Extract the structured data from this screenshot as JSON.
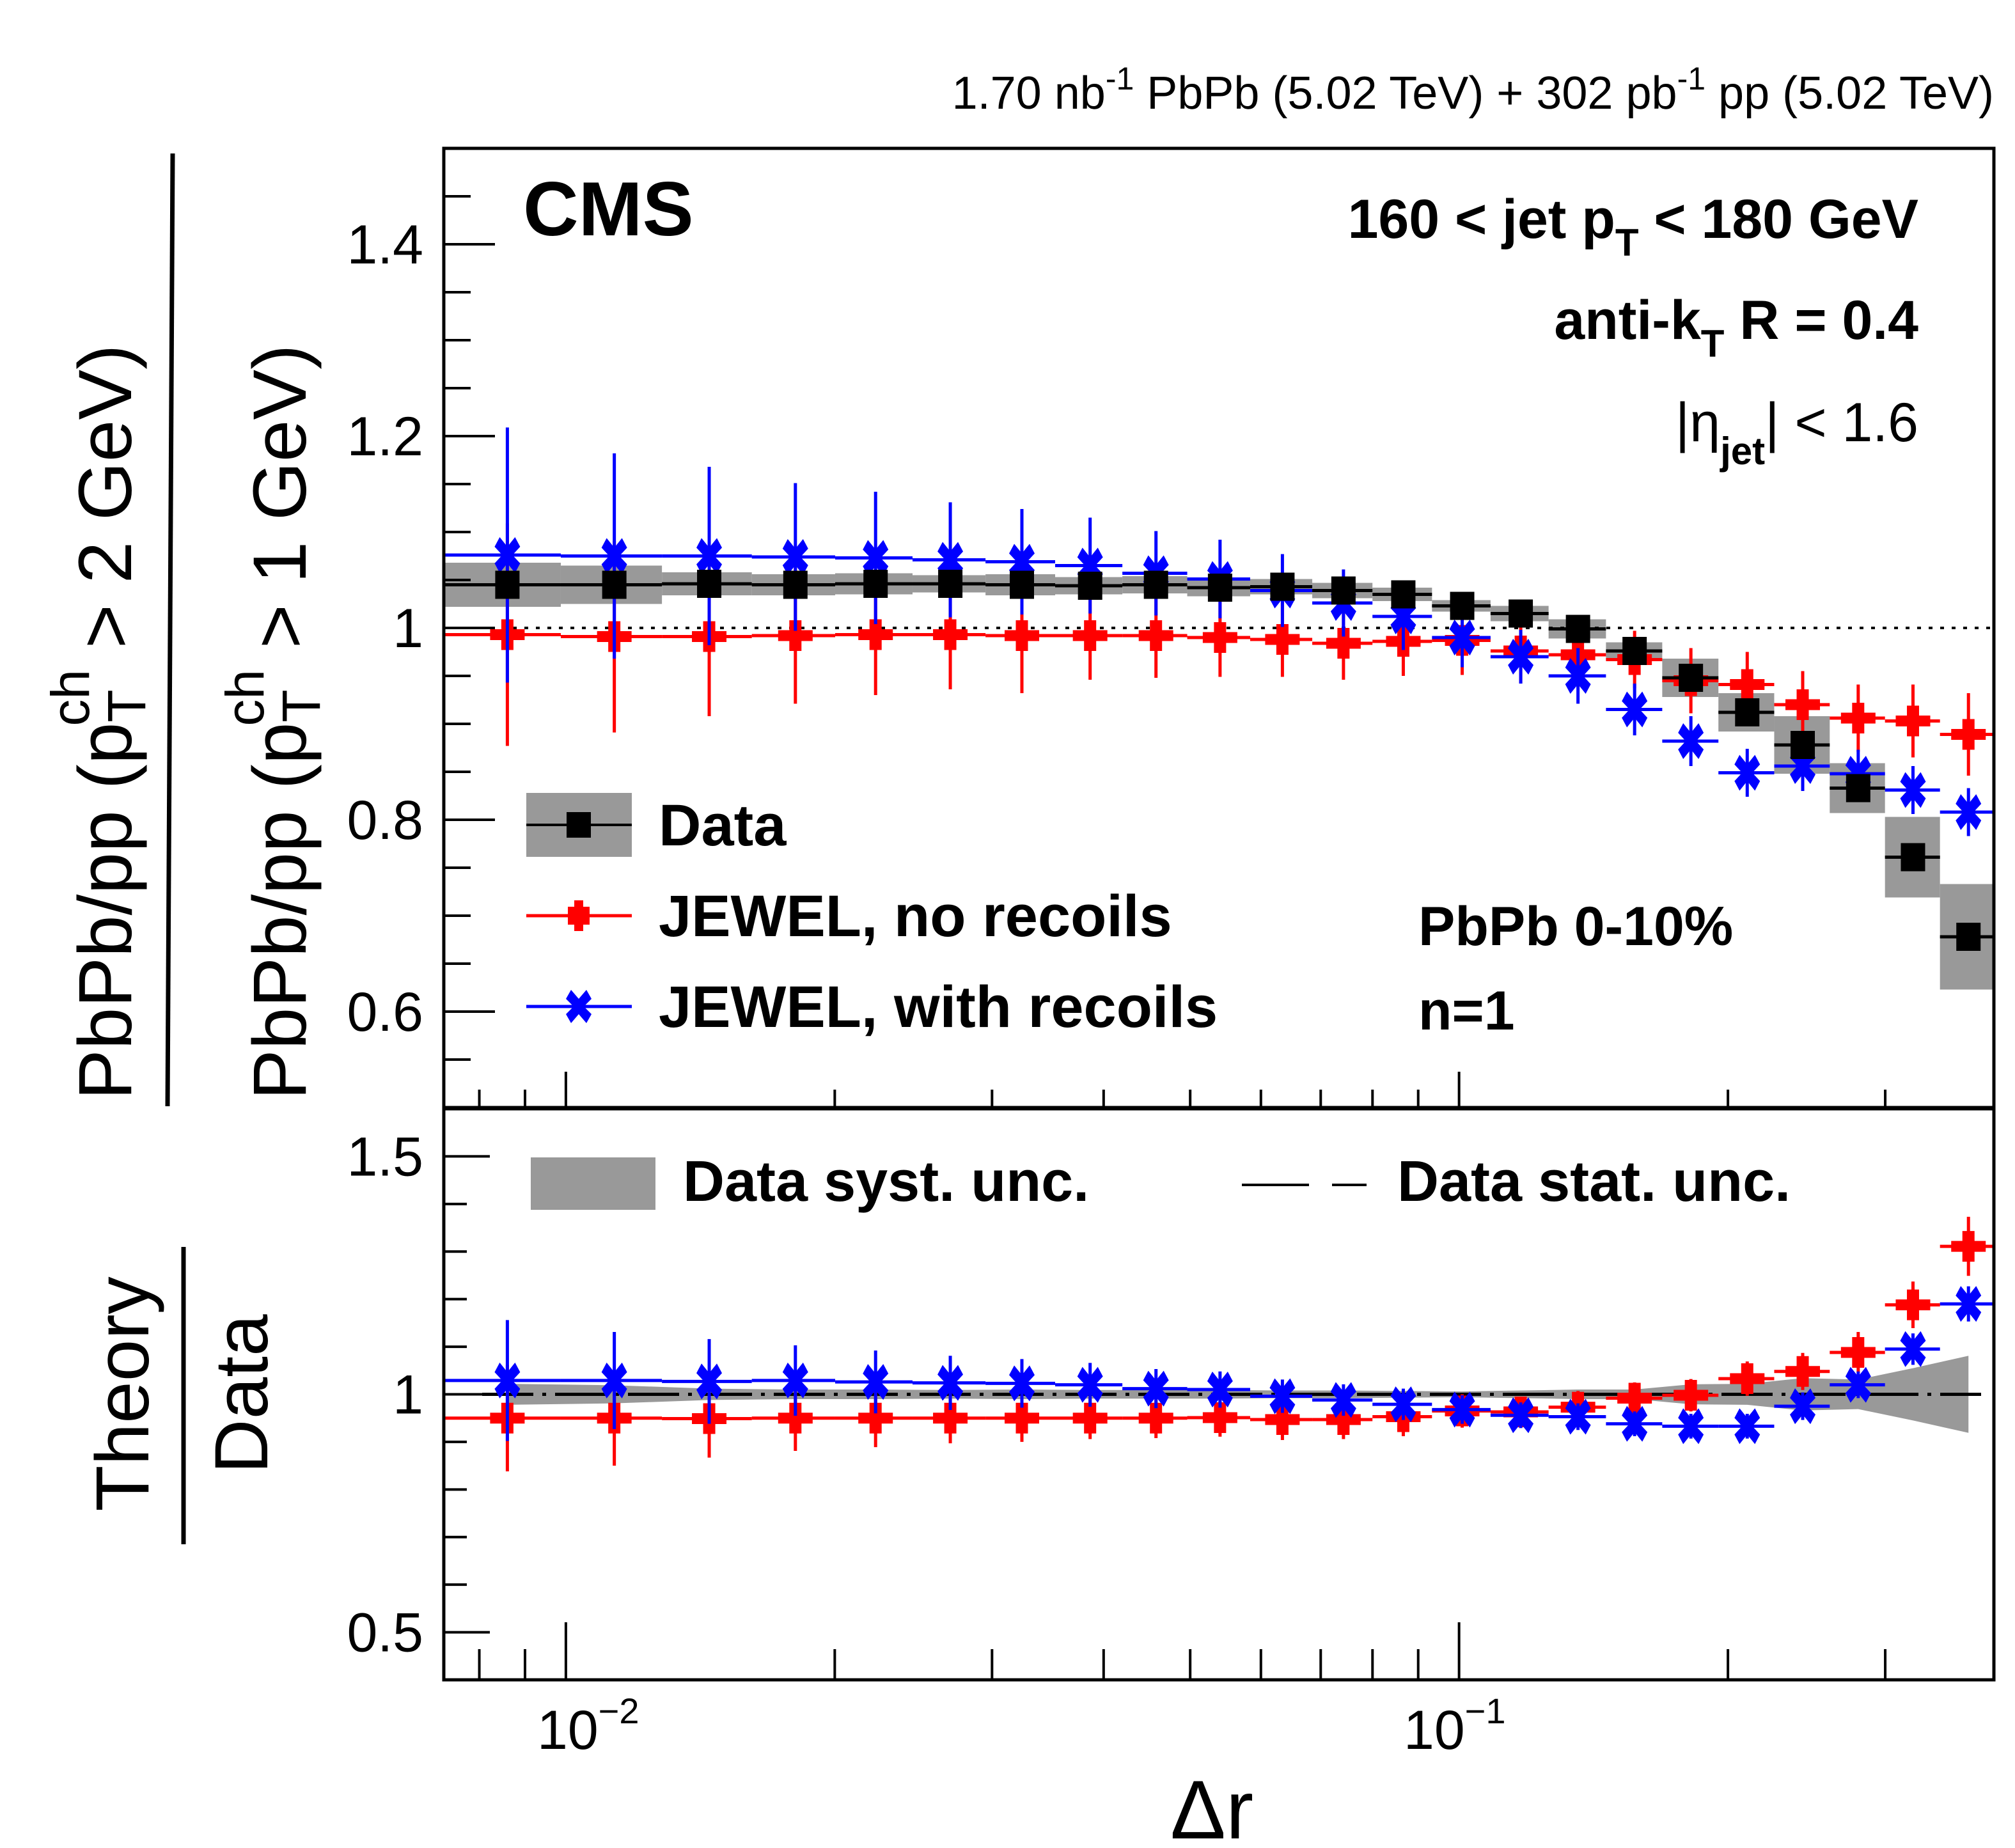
{
  "header": {
    "lumi_text": "1.70 nb⁻¹ PbPb (5.02 TeV) + 302 pb⁻¹ pp (5.02 TeV)",
    "lumi_parts": [
      "1.70 nb",
      "-1",
      " PbPb (5.02 TeV) + 302 pb",
      "-1",
      " pp (5.02 TeV)"
    ]
  },
  "labels": {
    "experiment": "CMS",
    "jet_pt_range": [
      "160 < jet p",
      "T",
      " < 180 GeV"
    ],
    "jet_algo": [
      "anti-k",
      "T",
      " R = 0.4"
    ],
    "eta_cut": [
      "|η",
      "jet",
      "| < 1.6"
    ],
    "centrality": "PbPb 0-10%",
    "moment": "n=1"
  },
  "axes": {
    "upper_ylabel_numerator": [
      "PbPb/pp (p",
      "T",
      "ch",
      " > 2 GeV)"
    ],
    "upper_ylabel_denominator": [
      "PbPb/pp (p",
      "T",
      "ch",
      " > 1 GeV)"
    ],
    "lower_ylabel_numerator": "Theory",
    "lower_ylabel_denominator": "Data",
    "xlabel": "Δr",
    "x_tick_labels": [
      {
        "base": "10",
        "exp": "−2",
        "value": 0.01
      },
      {
        "base": "10",
        "exp": "−1",
        "value": 0.1
      }
    ],
    "upper_y_tick_labels": [
      "1.4",
      "1.2",
      "1",
      "0.8",
      "0.6"
    ],
    "lower_y_tick_labels": [
      "1.5",
      "1",
      "0.5"
    ]
  },
  "legend": {
    "upper": [
      {
        "label": "Data",
        "style": "black-square-gray-band"
      },
      {
        "label": "JEWEL, no recoils",
        "style": "red-cross"
      },
      {
        "label": "JEWEL, with recoils",
        "style": "blue-x"
      }
    ],
    "lower": [
      {
        "label": "Data syst. unc.",
        "style": "gray-band"
      },
      {
        "label": "Data stat. unc.",
        "style": "dash-dot-line"
      }
    ]
  },
  "colors": {
    "data": "#000000",
    "syst_band": "#999999",
    "no_recoils": "#ff0000",
    "with_recoils": "#0000ff",
    "frame": "#000000"
  },
  "chart_data": [
    {
      "type": "scatter",
      "panel": "upper",
      "title": "",
      "xlabel": "Δr",
      "ylabel": "PbPb/pp (pT^ch > 2 GeV) / PbPb/pp (pT^ch > 1 GeV)",
      "xscale": "log",
      "xlim": [
        0.0073,
        0.397
      ],
      "ylim": [
        0.5,
        1.5
      ],
      "y_major_ticks": [
        0.6,
        0.8,
        1.0,
        1.2,
        1.4
      ],
      "y_minor_step": 0.05,
      "reference_line": {
        "y": 1.0,
        "style": "dotted"
      },
      "legend_position": "bottom-left",
      "x": [
        0.0086,
        0.01133,
        0.01447,
        0.01807,
        0.02222,
        0.02694,
        0.0324,
        0.03863,
        0.04578,
        0.054,
        0.06342,
        0.07423,
        0.08661,
        0.10081,
        0.11723,
        0.13588,
        0.15723,
        0.18178,
        0.2102,
        0.24251,
        0.27982,
        0.32226,
        0.3718
      ],
      "x_edges": [
        0.00733,
        0.00987,
        0.01281,
        0.01615,
        0.02002,
        0.02444,
        0.0295,
        0.0353,
        0.04198,
        0.04962,
        0.05836,
        0.06849,
        0.07999,
        0.09326,
        0.10846,
        0.12596,
        0.14604,
        0.16884,
        0.19515,
        0.22534,
        0.26001,
        0.29981,
        0.34548,
        0.39663
      ],
      "series": [
        {
          "name": "Data",
          "marker": "square",
          "values": [
            1.045,
            1.045,
            1.046,
            1.045,
            1.046,
            1.046,
            1.045,
            1.044,
            1.045,
            1.042,
            1.043,
            1.039,
            1.035,
            1.023,
            1.015,
            0.999,
            0.976,
            0.948,
            0.912,
            0.878,
            0.833,
            0.761,
            0.678
          ],
          "syst": [
            0.023,
            0.02,
            0.012,
            0.011,
            0.011,
            0.009,
            0.011,
            0.009,
            0.009,
            0.009,
            0.008,
            0.008,
            0.007,
            0.006,
            0.008,
            0.01,
            0.009,
            0.02,
            0.02,
            0.03,
            0.026,
            0.042,
            0.055
          ]
        },
        {
          "name": "JEWEL, no recoils",
          "marker": "cross",
          "values": [
            0.993,
            0.991,
            0.991,
            0.992,
            0.993,
            0.993,
            0.992,
            0.992,
            0.992,
            0.99,
            0.988,
            0.984,
            0.986,
            0.987,
            0.976,
            0.972,
            0.967,
            0.945,
            0.941,
            0.92,
            0.906,
            0.903,
            0.889
          ],
          "errors": [
            0.116,
            0.1,
            0.083,
            0.071,
            0.063,
            0.057,
            0.06,
            0.046,
            0.044,
            0.041,
            0.039,
            0.038,
            0.036,
            0.036,
            0.034,
            0.034,
            0.03,
            0.034,
            0.034,
            0.035,
            0.035,
            0.038,
            0.043
          ]
        },
        {
          "name": "JEWEL, with recoils",
          "marker": "x",
          "values": [
            1.076,
            1.075,
            1.075,
            1.074,
            1.073,
            1.071,
            1.069,
            1.065,
            1.057,
            1.051,
            1.039,
            1.026,
            1.012,
            0.99,
            0.97,
            0.95,
            0.915,
            0.882,
            0.849,
            0.856,
            0.848,
            0.831,
            0.808
          ],
          "errors": [
            0.133,
            0.107,
            0.093,
            0.077,
            0.069,
            0.06,
            0.055,
            0.05,
            0.044,
            0.041,
            0.038,
            0.035,
            0.035,
            0.031,
            0.028,
            0.029,
            0.027,
            0.026,
            0.025,
            0.026,
            0.025,
            0.025,
            0.025
          ]
        }
      ]
    },
    {
      "type": "scatter",
      "panel": "lower",
      "title": "",
      "xlabel": "Δr",
      "ylabel": "Theory / Data",
      "xscale": "log",
      "xlim": [
        0.0073,
        0.397
      ],
      "ylim": [
        0.4,
        1.6
      ],
      "y_major_ticks": [
        0.5,
        1.0,
        1.5
      ],
      "y_minor_step": 0.1,
      "reference_line": {
        "y": 1.0,
        "style": "dash-dot"
      },
      "legend_position": "top",
      "x": [
        0.0086,
        0.01133,
        0.01447,
        0.01807,
        0.02222,
        0.02694,
        0.0324,
        0.03863,
        0.04578,
        0.054,
        0.06342,
        0.07423,
        0.08661,
        0.10081,
        0.11723,
        0.13588,
        0.15723,
        0.18178,
        0.2102,
        0.24251,
        0.27982,
        0.32226,
        0.3718
      ],
      "x_edges": [
        0.00733,
        0.00987,
        0.01281,
        0.01615,
        0.02002,
        0.02444,
        0.0295,
        0.0353,
        0.04198,
        0.04962,
        0.05836,
        0.06849,
        0.07999,
        0.09326,
        0.10846,
        0.12596,
        0.14604,
        0.16884,
        0.19515,
        0.22534,
        0.26001,
        0.29981,
        0.34548,
        0.39663
      ],
      "syst_band_relative": [
        0.022,
        0.019,
        0.012,
        0.01,
        0.01,
        0.009,
        0.01,
        0.009,
        0.009,
        0.009,
        0.008,
        0.008,
        0.007,
        0.006,
        0.008,
        0.01,
        0.01,
        0.021,
        0.022,
        0.034,
        0.031,
        0.055,
        0.081
      ],
      "series": [
        {
          "name": "JEWEL, no recoils / Data",
          "marker": "cross",
          "values": [
            0.95,
            0.95,
            0.949,
            0.95,
            0.95,
            0.95,
            0.95,
            0.95,
            0.95,
            0.951,
            0.947,
            0.947,
            0.953,
            0.965,
            0.963,
            0.973,
            0.992,
            0.998,
            1.033,
            1.048,
            1.088,
            1.188,
            1.311
          ],
          "errors": [
            0.112,
            0.1,
            0.082,
            0.069,
            0.061,
            0.053,
            0.05,
            0.044,
            0.042,
            0.04,
            0.043,
            0.041,
            0.041,
            0.035,
            0.032,
            0.034,
            0.033,
            0.034,
            0.036,
            0.039,
            0.043,
            0.049,
            0.062
          ]
        },
        {
          "name": "JEWEL, with recoils / Data",
          "marker": "x",
          "values": [
            1.029,
            1.029,
            1.027,
            1.029,
            1.026,
            1.024,
            1.023,
            1.02,
            1.012,
            1.01,
            0.996,
            0.988,
            0.979,
            0.968,
            0.956,
            0.953,
            0.938,
            0.933,
            0.933,
            0.975,
            1.02,
            1.095,
            1.19
          ],
          "errors": [
            0.127,
            0.102,
            0.089,
            0.074,
            0.066,
            0.057,
            0.051,
            0.046,
            0.041,
            0.038,
            0.035,
            0.033,
            0.033,
            0.03,
            0.027,
            0.028,
            0.026,
            0.026,
            0.026,
            0.029,
            0.028,
            0.033,
            0.037
          ]
        }
      ]
    }
  ]
}
